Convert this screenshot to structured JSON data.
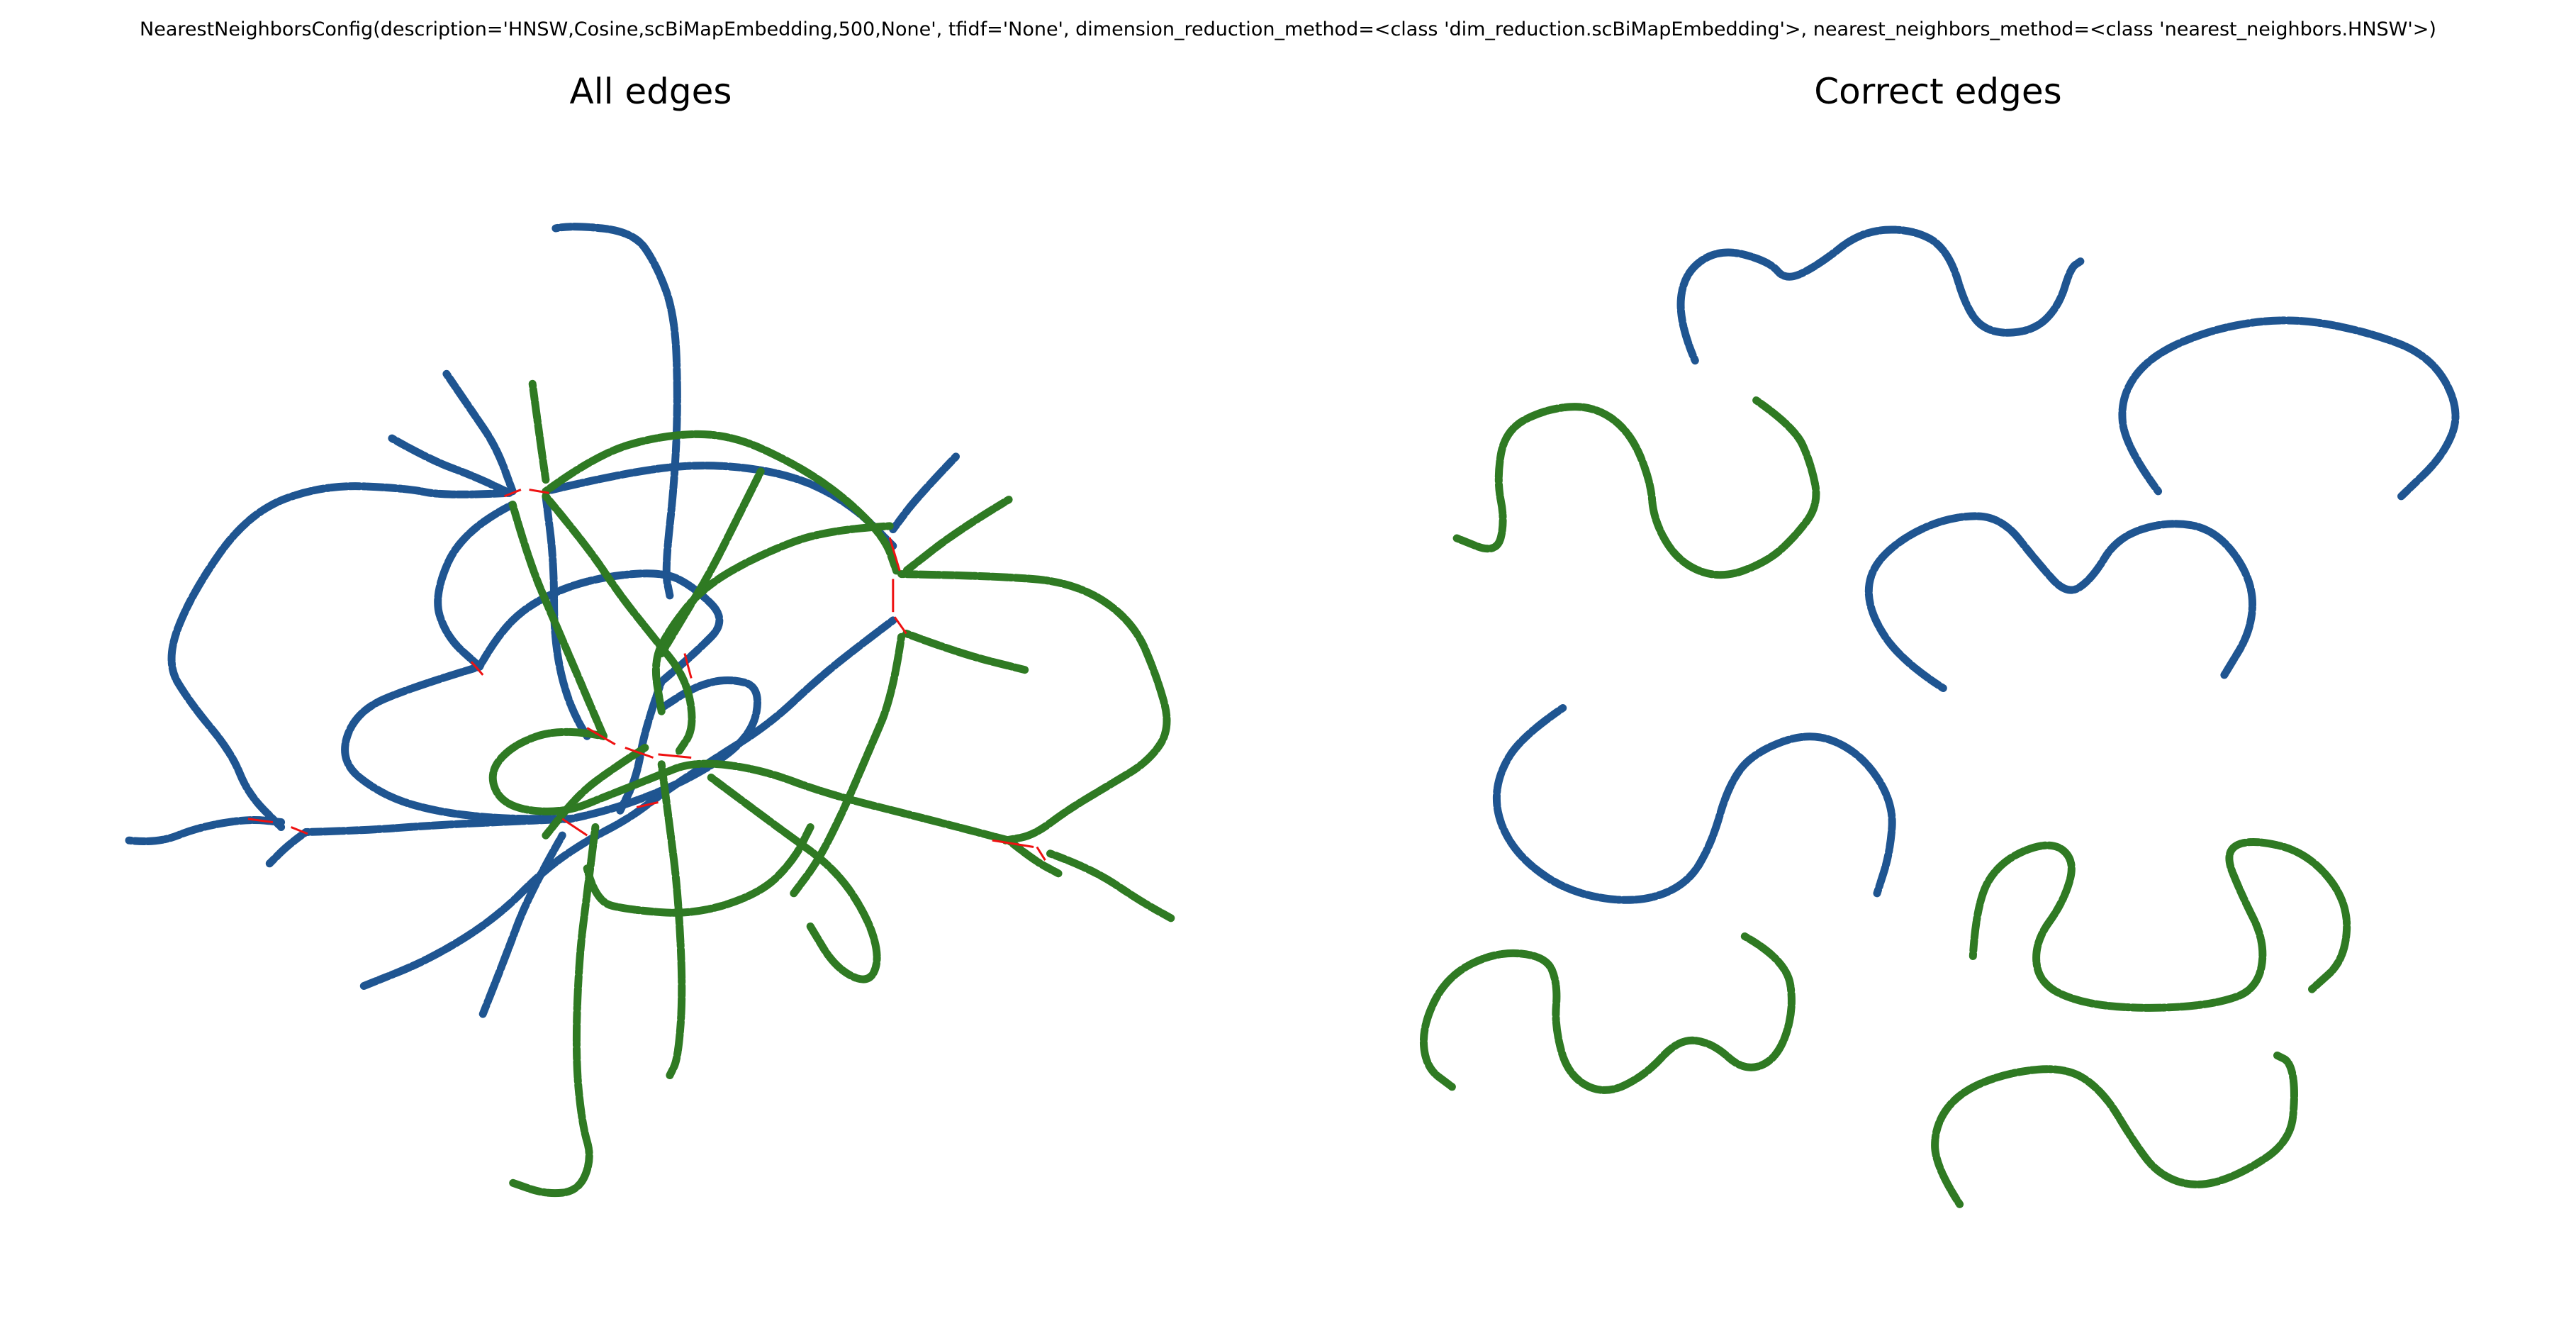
{
  "figure": {
    "suptitle": "NearestNeighborsConfig(description='HNSW,Cosine,scBiMapEmbedding,500,None', tfidf='None', dimension_reduction_method=<class 'dim_reduction.scBiMapEmbedding'>, nearest_neighbors_method=<class 'nearest_neighbors.HNSW'>)",
    "left_panel_title": "All edges",
    "right_panel_title": "Correct edges"
  },
  "colors": {
    "class_a": "#1f5591",
    "class_b": "#2f7a23",
    "wrong_edge": "#ee1111",
    "background": "#ffffff"
  },
  "chart_data": {
    "type": "graph",
    "panels": [
      {
        "name": "All edges",
        "node_groups": [
          "class_a",
          "class_b"
        ],
        "edge_types": [
          "correct",
          "wrong_edge"
        ]
      },
      {
        "name": "Correct edges",
        "node_groups": [
          "class_a",
          "class_b"
        ],
        "edge_types": [
          "correct"
        ]
      }
    ],
    "axes_visible": false
  }
}
